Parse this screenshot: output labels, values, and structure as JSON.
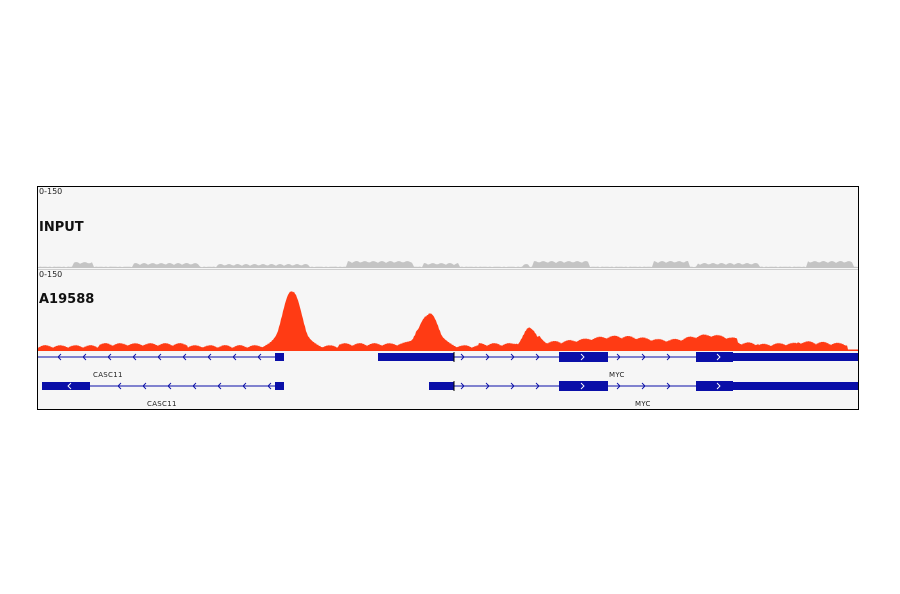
{
  "tracks": [
    {
      "name": "INPUT",
      "range": "0-150",
      "color": "#c4c4c4"
    },
    {
      "name": "A19588",
      "range": "0-150",
      "color": "#ff3b14"
    }
  ],
  "gene_color": "#0a0fa8",
  "genes": {
    "row1": {
      "left_gene": "CASC11",
      "right_gene": "MYC"
    },
    "row2": {
      "left_gene": "CASC11",
      "right_gene": "MYC"
    }
  }
}
